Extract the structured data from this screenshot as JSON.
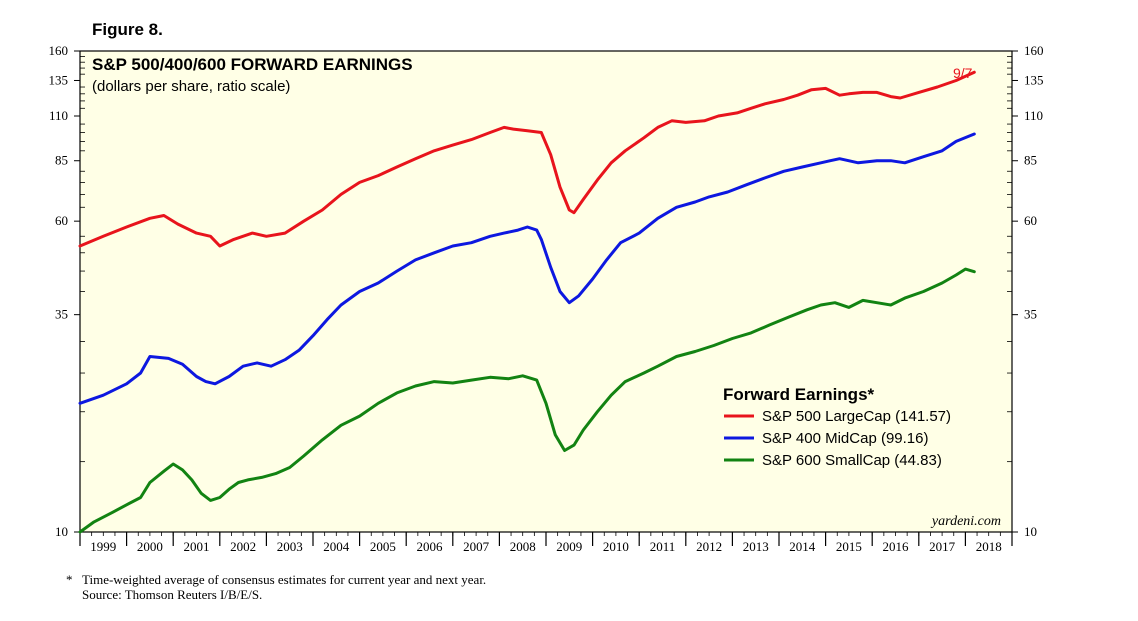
{
  "figure_label": "Figure 8.",
  "chart_data": {
    "type": "line",
    "title": "S&P 500/400/600 FORWARD EARNINGS",
    "subtitle": "(dollars per share, ratio scale)",
    "yscale": "log",
    "ylim": [
      10,
      160
    ],
    "yticks": [
      10,
      35,
      60,
      85,
      110,
      135,
      160
    ],
    "ytick_labels": [
      "10",
      "35",
      "60",
      "85",
      "110",
      "135",
      "160"
    ],
    "xlim": [
      1998.5,
      2018.5
    ],
    "x_labels": [
      "1999",
      "2000",
      "2001",
      "2002",
      "2003",
      "2004",
      "2005",
      "2006",
      "2007",
      "2008",
      "2009",
      "2010",
      "2011",
      "2012",
      "2013",
      "2014",
      "2015",
      "2016",
      "2017",
      "2018"
    ],
    "end_annotation": "9/7",
    "legend_title": "Forward Earnings*",
    "legend_position": "center-right",
    "series": [
      {
        "name": "S&P 500 LargeCap (141.57)",
        "color": "#e8141c",
        "x": [
          1998.5,
          1999.0,
          1999.5,
          2000.0,
          2000.3,
          2000.6,
          2001.0,
          2001.3,
          2001.5,
          2001.8,
          2002.2,
          2002.5,
          2002.9,
          2003.3,
          2003.7,
          2004.1,
          2004.5,
          2004.9,
          2005.3,
          2005.7,
          2006.1,
          2006.5,
          2006.9,
          2007.3,
          2007.6,
          2007.8,
          2008.1,
          2008.4,
          2008.6,
          2008.8,
          2009.0,
          2009.1,
          2009.3,
          2009.6,
          2009.9,
          2010.2,
          2010.6,
          2010.9,
          2011.2,
          2011.5,
          2011.9,
          2012.2,
          2012.6,
          2012.9,
          2013.2,
          2013.6,
          2013.9,
          2014.2,
          2014.5,
          2014.8,
          2015.0,
          2015.3,
          2015.6,
          2015.9,
          2016.1,
          2016.5,
          2016.9,
          2017.3,
          2017.69
        ],
        "values": [
          52,
          55,
          58,
          61,
          62,
          59,
          56,
          55,
          52,
          54,
          56,
          55,
          56,
          60,
          64,
          70,
          75,
          78,
          82,
          86,
          90,
          93,
          96,
          100,
          103,
          102,
          101,
          100,
          88,
          73,
          64,
          63,
          68,
          76,
          84,
          90,
          97,
          103,
          107,
          106,
          107,
          110,
          112,
          115,
          118,
          121,
          124,
          128,
          129,
          124,
          125,
          126,
          126,
          123,
          122,
          126,
          130,
          135,
          141.57
        ]
      },
      {
        "name": "S&P 400 MidCap (99.16)",
        "color": "#0d18e0",
        "x": [
          1998.5,
          1999.0,
          1999.5,
          1999.8,
          2000.0,
          2000.4,
          2000.7,
          2001.0,
          2001.2,
          2001.4,
          2001.7,
          2002.0,
          2002.3,
          2002.6,
          2002.9,
          2003.2,
          2003.5,
          2003.8,
          2004.1,
          2004.5,
          2004.9,
          2005.3,
          2005.7,
          2006.1,
          2006.5,
          2006.9,
          2007.3,
          2007.6,
          2007.9,
          2008.1,
          2008.3,
          2008.4,
          2008.6,
          2008.8,
          2009.0,
          2009.2,
          2009.5,
          2009.8,
          2010.1,
          2010.5,
          2010.9,
          2011.3,
          2011.7,
          2012.0,
          2012.4,
          2012.8,
          2013.2,
          2013.6,
          2014.0,
          2014.4,
          2014.6,
          2014.8,
          2015.2,
          2015.6,
          2015.9,
          2016.2,
          2016.6,
          2017.0,
          2017.3,
          2017.69
        ],
        "values": [
          21,
          22,
          23.5,
          25,
          27.5,
          27.2,
          26.3,
          24.5,
          23.8,
          23.5,
          24.5,
          26,
          26.5,
          26,
          27,
          28.5,
          31,
          34,
          37,
          40,
          42,
          45,
          48,
          50,
          52,
          53,
          55,
          56,
          57,
          58,
          57,
          54,
          46,
          40,
          37.5,
          39,
          43,
          48,
          53,
          56,
          61,
          65,
          67,
          69,
          71,
          74,
          77,
          80,
          82,
          84,
          85,
          86,
          84,
          85,
          85,
          84,
          87,
          90,
          95,
          99.16
        ]
      },
      {
        "name": "S&P 600 SmallCap (44.83)",
        "color": "#128312",
        "x": [
          1998.5,
          1998.8,
          1999.2,
          1999.5,
          1999.8,
          2000.0,
          2000.3,
          2000.5,
          2000.7,
          2000.9,
          2001.1,
          2001.3,
          2001.5,
          2001.7,
          2001.9,
          2002.1,
          2002.4,
          2002.7,
          2003.0,
          2003.3,
          2003.7,
          2004.1,
          2004.5,
          2004.9,
          2005.3,
          2005.7,
          2006.1,
          2006.5,
          2006.9,
          2007.3,
          2007.7,
          2008.0,
          2008.3,
          2008.5,
          2008.7,
          2008.9,
          2009.1,
          2009.3,
          2009.6,
          2009.9,
          2010.2,
          2010.6,
          2010.9,
          2011.3,
          2011.7,
          2012.1,
          2012.5,
          2012.9,
          2013.3,
          2013.7,
          2014.1,
          2014.4,
          2014.7,
          2015.0,
          2015.3,
          2015.6,
          2015.9,
          2016.2,
          2016.6,
          2017.0,
          2017.3,
          2017.5,
          2017.69
        ],
        "values": [
          10,
          10.6,
          11.2,
          11.7,
          12.2,
          13.3,
          14.2,
          14.8,
          14.3,
          13.5,
          12.5,
          12.0,
          12.2,
          12.8,
          13.3,
          13.5,
          13.7,
          14.0,
          14.5,
          15.5,
          17,
          18.5,
          19.5,
          21,
          22.3,
          23.2,
          23.8,
          23.6,
          24.0,
          24.4,
          24.2,
          24.6,
          24.0,
          21,
          17.5,
          16,
          16.5,
          18,
          20,
          22,
          23.8,
          25,
          26,
          27.5,
          28.3,
          29.3,
          30.5,
          31.5,
          33,
          34.5,
          36,
          37,
          37.5,
          36.5,
          38,
          37.5,
          37,
          38.5,
          40,
          42,
          44,
          45.5,
          44.83
        ]
      }
    ]
  },
  "watermark": "yardeni.com",
  "footnote_star": "*",
  "footnote_text": "Time-weighted average of consensus estimates for current year and next year.",
  "source_text": "Source: Thomson Reuters I/B/E/S."
}
